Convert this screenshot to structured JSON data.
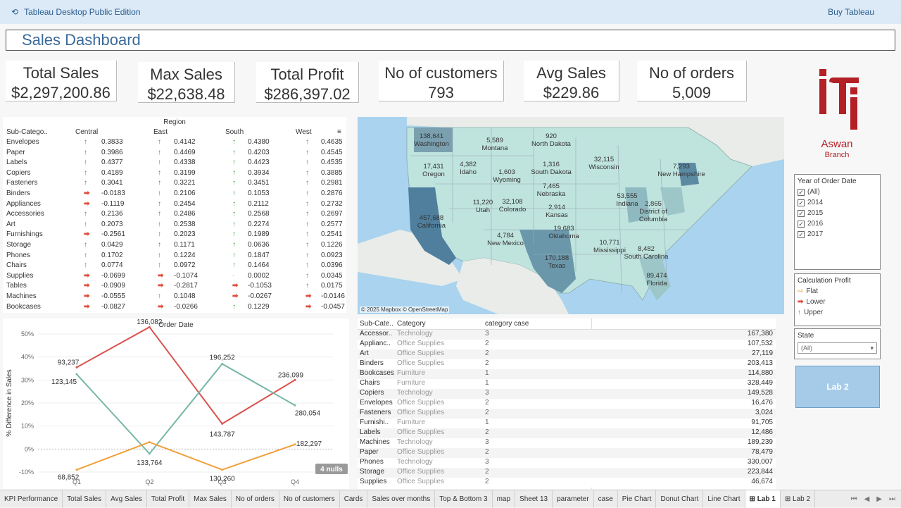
{
  "app": {
    "title": "Tableau Desktop Public Edition",
    "buy": "Buy Tableau"
  },
  "dashboard": {
    "title": "Sales Dashboard"
  },
  "kpis": [
    {
      "label": "Total Sales",
      "value": "$2,297,200.86"
    },
    {
      "label": "Max Sales",
      "value": "$22,638.48"
    },
    {
      "label": "Total Profit",
      "value": "$286,397.02"
    },
    {
      "label": "No of customers",
      "value": "793"
    },
    {
      "label": "Avg Sales",
      "value": "$229.86"
    },
    {
      "label": "No of orders",
      "value": "5,009"
    }
  ],
  "logo": {
    "line1": "Aswan",
    "line2": "Branch",
    "color": "#b32025"
  },
  "region_table": {
    "title": "Region",
    "columns": [
      "Sub-Catego..",
      "Central",
      "East",
      "South",
      "West"
    ],
    "rows": [
      {
        "name": "Envelopes",
        "vals": [
          "0.3833",
          "0.4142",
          "0.4380",
          "0.4635"
        ],
        "dirs": [
          "up",
          "up",
          "up",
          "up"
        ]
      },
      {
        "name": "Paper",
        "vals": [
          "0.3986",
          "0.4469",
          "0.4203",
          "0.4545"
        ],
        "dirs": [
          "up",
          "up",
          "up",
          "up"
        ]
      },
      {
        "name": "Labels",
        "vals": [
          "0.4377",
          "0.4338",
          "0.4423",
          "0.4535"
        ],
        "dirs": [
          "up",
          "up",
          "up",
          "up"
        ]
      },
      {
        "name": "Copiers",
        "vals": [
          "0.4189",
          "0.3199",
          "0.3934",
          "0.3885"
        ],
        "dirs": [
          "up",
          "up",
          "up",
          "up"
        ]
      },
      {
        "name": "Fasteners",
        "vals": [
          "0.3041",
          "0.3221",
          "0.3451",
          "0.2981"
        ],
        "dirs": [
          "up",
          "up",
          "up",
          "up"
        ]
      },
      {
        "name": "Binders",
        "vals": [
          "-0.0183",
          "0.2106",
          "0.1053",
          "0.2876"
        ],
        "dirs": [
          "dn",
          "up",
          "up",
          "up"
        ]
      },
      {
        "name": "Appliances",
        "vals": [
          "-0.1119",
          "0.2454",
          "0.2112",
          "0.2732"
        ],
        "dirs": [
          "dn",
          "up",
          "up",
          "up"
        ]
      },
      {
        "name": "Accessories",
        "vals": [
          "0.2136",
          "0.2486",
          "0.2568",
          "0.2697"
        ],
        "dirs": [
          "up",
          "up",
          "up",
          "up"
        ]
      },
      {
        "name": "Art",
        "vals": [
          "0.2073",
          "0.2538",
          "0.2274",
          "0.2577"
        ],
        "dirs": [
          "up",
          "up",
          "up",
          "up"
        ]
      },
      {
        "name": "Furnishings",
        "vals": [
          "-0.2561",
          "0.2023",
          "0.1989",
          "0.2541"
        ],
        "dirs": [
          "dn",
          "up",
          "up",
          "up"
        ]
      },
      {
        "name": "Storage",
        "vals": [
          "0.0429",
          "0.1171",
          "0.0636",
          "0.1226"
        ],
        "dirs": [
          "up",
          "up",
          "up",
          "up"
        ]
      },
      {
        "name": "Phones",
        "vals": [
          "0.1702",
          "0.1224",
          "0.1847",
          "0.0923"
        ],
        "dirs": [
          "up",
          "up",
          "up",
          "up"
        ]
      },
      {
        "name": "Chairs",
        "vals": [
          "0.0774",
          "0.0972",
          "0.1464",
          "0.0396"
        ],
        "dirs": [
          "up",
          "up",
          "up",
          "up"
        ]
      },
      {
        "name": "Supplies",
        "vals": [
          "-0.0699",
          "-0.1074",
          "0.0002",
          "0.0345"
        ],
        "dirs": [
          "dn",
          "dn",
          "fl",
          "up"
        ]
      },
      {
        "name": "Tables",
        "vals": [
          "-0.0909",
          "-0.2817",
          "-0.1053",
          "0.0175"
        ],
        "dirs": [
          "dn",
          "dn",
          "dn",
          "up"
        ]
      },
      {
        "name": "Machines",
        "vals": [
          "-0.0555",
          "0.1048",
          "-0.0267",
          "-0.0146"
        ],
        "dirs": [
          "dn",
          "up",
          "dn",
          "dn"
        ]
      },
      {
        "name": "Bookcases",
        "vals": [
          "-0.0827",
          "-0.0266",
          "0.1229",
          "-0.0457"
        ],
        "dirs": [
          "dn",
          "dn",
          "up",
          "dn"
        ]
      }
    ]
  },
  "map": {
    "credit": "© 2025 Mapbox © OpenStreetMap",
    "labels": [
      {
        "state": "Washington",
        "value": "138,641"
      },
      {
        "state": "Oregon",
        "value": "17,431"
      },
      {
        "state": "California",
        "value": "457,688"
      },
      {
        "state": "Idaho",
        "value": "4,382"
      },
      {
        "state": "Montana",
        "value": "5,589"
      },
      {
        "state": "Wyoming",
        "value": "1,603"
      },
      {
        "state": "Utah",
        "value": "11,220"
      },
      {
        "state": "Colorado",
        "value": "32,108"
      },
      {
        "state": "New Mexico",
        "value": "4,784"
      },
      {
        "state": "North Dakota",
        "value": "920"
      },
      {
        "state": "South Dakota",
        "value": "1,316"
      },
      {
        "state": "Nebraska",
        "value": "7,465"
      },
      {
        "state": "Kansas",
        "value": "2,914"
      },
      {
        "state": "Oklahoma",
        "value": "19,683"
      },
      {
        "state": "Texas",
        "value": "170,188"
      },
      {
        "state": "Wisconsin",
        "value": "32,115"
      },
      {
        "state": "Indiana",
        "value": "53,555"
      },
      {
        "state": "Mississippi",
        "value": "10,771"
      },
      {
        "state": "South Carolina",
        "value": "8,482"
      },
      {
        "state": "Florida",
        "value": "89,474"
      },
      {
        "state": "District of Columbia",
        "value": "2,865"
      },
      {
        "state": "New Hampshire",
        "value": "7,293"
      }
    ]
  },
  "filters": {
    "year": {
      "title": "Year of Order Date",
      "options": [
        "(All)",
        "2014",
        "2015",
        "2016",
        "2017"
      ]
    },
    "calc": {
      "title": "Calculation Profit",
      "options": [
        {
          "label": "Flat",
          "icon": "arrow-right-yellow"
        },
        {
          "label": "Lower",
          "icon": "arrow-right-red"
        },
        {
          "label": "Upper",
          "icon": "arrow-up-green"
        }
      ]
    },
    "state": {
      "title": "State",
      "selected": "(All)"
    },
    "button": "Lab 2"
  },
  "chart_data": {
    "type": "line",
    "title": "Order Date",
    "ylabel": "% Difference in Sales",
    "categories": [
      "Q1",
      "Q2",
      "Q3",
      "Q4"
    ],
    "ylim": [
      -0.1,
      0.5
    ],
    "yticks": [
      "50%",
      "40%",
      "30%",
      "20%",
      "10%",
      "0%",
      "-10%"
    ],
    "nulls_badge": "4 nulls",
    "series": [
      {
        "color": "#d9534f",
        "values": [
          0.355,
          0.53,
          0.11,
          0.3
        ],
        "labels": [
          "93,237",
          "136,082",
          "143,787",
          "236,099"
        ]
      },
      {
        "color": "#76b7a8",
        "values": [
          0.325,
          -0.02,
          0.37,
          0.19
        ],
        "labels": [
          "123,145",
          "133,764",
          "196,252",
          "280,054"
        ]
      },
      {
        "color": "#f0a03c",
        "values": [
          -0.09,
          0.03,
          -0.09,
          0.02
        ],
        "labels": [
          "68,852",
          "",
          "130,260",
          "182,297"
        ]
      }
    ]
  },
  "sales_table": {
    "columns": [
      "Sub-Cate..",
      "Category",
      "category case"
    ],
    "rows": [
      {
        "sub": "Accessor..",
        "cat": "Technology",
        "case": "3",
        "sales": "167,380"
      },
      {
        "sub": "Applianc..",
        "cat": "Office Supplies",
        "case": "2",
        "sales": "107,532"
      },
      {
        "sub": "Art",
        "cat": "Office Supplies",
        "case": "2",
        "sales": "27,119"
      },
      {
        "sub": "Binders",
        "cat": "Office Supplies",
        "case": "2",
        "sales": "203,413"
      },
      {
        "sub": "Bookcases",
        "cat": "Furniture",
        "case": "1",
        "sales": "114,880"
      },
      {
        "sub": "Chairs",
        "cat": "Furniture",
        "case": "1",
        "sales": "328,449"
      },
      {
        "sub": "Copiers",
        "cat": "Technology",
        "case": "3",
        "sales": "149,528"
      },
      {
        "sub": "Envelopes",
        "cat": "Office Supplies",
        "case": "2",
        "sales": "16,476"
      },
      {
        "sub": "Fasteners",
        "cat": "Office Supplies",
        "case": "2",
        "sales": "3,024"
      },
      {
        "sub": "Furnishi..",
        "cat": "Furniture",
        "case": "1",
        "sales": "91,705"
      },
      {
        "sub": "Labels",
        "cat": "Office Supplies",
        "case": "2",
        "sales": "12,486"
      },
      {
        "sub": "Machines",
        "cat": "Technology",
        "case": "3",
        "sales": "189,239"
      },
      {
        "sub": "Paper",
        "cat": "Office Supplies",
        "case": "2",
        "sales": "78,479"
      },
      {
        "sub": "Phones",
        "cat": "Technology",
        "case": "3",
        "sales": "330,007"
      },
      {
        "sub": "Storage",
        "cat": "Office Supplies",
        "case": "2",
        "sales": "223,844"
      },
      {
        "sub": "Supplies",
        "cat": "Office Supplies",
        "case": "2",
        "sales": "46,674"
      }
    ]
  },
  "tabs": [
    "KPI Performance",
    "Total Sales",
    "Avg Sales",
    "Total Profit",
    "Max Sales",
    "No of orders",
    "No of customers",
    "Cards",
    "Sales over months",
    "Top & Bottom 3",
    "map",
    "Sheet 13",
    "parameter",
    "case",
    "Pie Chart",
    "Donut Chart",
    "Line Chart",
    "Lab 1",
    "Lab 2"
  ],
  "active_tab": "Lab 1"
}
